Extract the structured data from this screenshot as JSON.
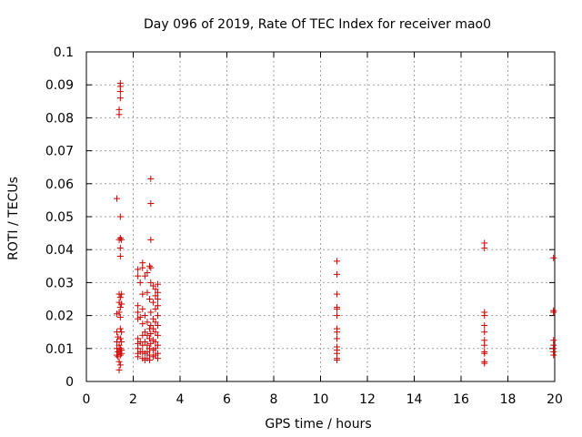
{
  "chart_data": {
    "type": "scatter",
    "title": "Day 096 of 2019, Rate Of TEC Index for receiver mao0",
    "xlabel": "GPS time / hours",
    "ylabel": "ROTI / TECUs",
    "xlim": [
      0,
      20
    ],
    "ylim": [
      0,
      0.1
    ],
    "x_ticks": [
      "0",
      "2",
      "4",
      "6",
      "8",
      "10",
      "12",
      "14",
      "16",
      "18",
      "20"
    ],
    "y_ticks": [
      "0",
      "0.01",
      "0.02",
      "0.03",
      "0.04",
      "0.05",
      "0.06",
      "0.07",
      "0.08",
      "0.09",
      "0.1"
    ],
    "grid": true,
    "marker": "+",
    "marker_color": "#cc0000",
    "series": [
      {
        "name": "mao0",
        "points": [
          [
            1.3,
            0.0555
          ],
          [
            1.3,
            0.015
          ],
          [
            1.3,
            0.012
          ],
          [
            1.3,
            0.01
          ],
          [
            1.3,
            0.008
          ],
          [
            1.3,
            0.0205
          ],
          [
            1.35,
            0.0135
          ],
          [
            1.35,
            0.009
          ],
          [
            1.35,
            0.0075
          ],
          [
            1.4,
            0.0825
          ],
          [
            1.4,
            0.081
          ],
          [
            1.4,
            0.043
          ],
          [
            1.4,
            0.0265
          ],
          [
            1.4,
            0.024
          ],
          [
            1.4,
            0.021
          ],
          [
            1.4,
            0.011
          ],
          [
            1.4,
            0.009
          ],
          [
            1.4,
            0.006
          ],
          [
            1.4,
            0.0035
          ],
          [
            1.45,
            0.0905
          ],
          [
            1.45,
            0.0895
          ],
          [
            1.45,
            0.088
          ],
          [
            1.45,
            0.086
          ],
          [
            1.45,
            0.05
          ],
          [
            1.45,
            0.0435
          ],
          [
            1.45,
            0.0405
          ],
          [
            1.45,
            0.038
          ],
          [
            1.45,
            0.0255
          ],
          [
            1.45,
            0.0225
          ],
          [
            1.45,
            0.0195
          ],
          [
            1.45,
            0.016
          ],
          [
            1.45,
            0.013
          ],
          [
            1.45,
            0.01
          ],
          [
            1.45,
            0.008
          ],
          [
            1.45,
            0.005
          ],
          [
            1.5,
            0.043
          ],
          [
            1.5,
            0.0265
          ],
          [
            1.5,
            0.0235
          ],
          [
            1.5,
            0.015
          ],
          [
            1.5,
            0.012
          ],
          [
            1.5,
            0.0095
          ],
          [
            1.5,
            0.0085
          ],
          [
            2.2,
            0.034
          ],
          [
            2.2,
            0.032
          ],
          [
            2.2,
            0.023
          ],
          [
            2.2,
            0.021
          ],
          [
            2.2,
            0.019
          ],
          [
            2.2,
            0.013
          ],
          [
            2.2,
            0.0115
          ],
          [
            2.2,
            0.01
          ],
          [
            2.2,
            0.0085
          ],
          [
            2.2,
            0.0075
          ],
          [
            2.3,
            0.03
          ],
          [
            2.3,
            0.0195
          ],
          [
            2.3,
            0.012
          ],
          [
            2.3,
            0.009
          ],
          [
            2.4,
            0.036
          ],
          [
            2.4,
            0.0345
          ],
          [
            2.4,
            0.0265
          ],
          [
            2.4,
            0.022
          ],
          [
            2.4,
            0.0175
          ],
          [
            2.4,
            0.014
          ],
          [
            2.4,
            0.011
          ],
          [
            2.4,
            0.009
          ],
          [
            2.4,
            0.007
          ],
          [
            2.5,
            0.032
          ],
          [
            2.5,
            0.02
          ],
          [
            2.5,
            0.015
          ],
          [
            2.5,
            0.012
          ],
          [
            2.5,
            0.0085
          ],
          [
            2.5,
            0.0065
          ],
          [
            2.6,
            0.033
          ],
          [
            2.6,
            0.027
          ],
          [
            2.6,
            0.018
          ],
          [
            2.6,
            0.014
          ],
          [
            2.6,
            0.011
          ],
          [
            2.6,
            0.009
          ],
          [
            2.6,
            0.007
          ],
          [
            2.7,
            0.035
          ],
          [
            2.7,
            0.025
          ],
          [
            2.7,
            0.016
          ],
          [
            2.7,
            0.013
          ],
          [
            2.7,
            0.01
          ],
          [
            2.7,
            0.008
          ],
          [
            2.7,
            0.0065
          ],
          [
            2.75,
            0.0615
          ],
          [
            2.75,
            0.054
          ],
          [
            2.75,
            0.043
          ],
          [
            2.75,
            0.0345
          ],
          [
            2.75,
            0.03
          ],
          [
            2.75,
            0.021
          ],
          [
            2.75,
            0.017
          ],
          [
            2.75,
            0.0145
          ],
          [
            2.75,
            0.0115
          ],
          [
            2.85,
            0.029
          ],
          [
            2.85,
            0.024
          ],
          [
            2.85,
            0.019
          ],
          [
            2.85,
            0.016
          ],
          [
            2.85,
            0.0125
          ],
          [
            2.85,
            0.0095
          ],
          [
            2.85,
            0.0075
          ],
          [
            2.95,
            0.028
          ],
          [
            2.95,
            0.026
          ],
          [
            2.95,
            0.022
          ],
          [
            2.95,
            0.018
          ],
          [
            2.95,
            0.015
          ],
          [
            2.95,
            0.012
          ],
          [
            2.95,
            0.01
          ],
          [
            2.95,
            0.008
          ],
          [
            3.05,
            0.0295
          ],
          [
            3.05,
            0.027
          ],
          [
            3.05,
            0.025
          ],
          [
            3.05,
            0.023
          ],
          [
            3.05,
            0.02
          ],
          [
            3.05,
            0.017
          ],
          [
            3.05,
            0.014
          ],
          [
            3.05,
            0.011
          ],
          [
            3.05,
            0.0085
          ],
          [
            3.05,
            0.007
          ],
          [
            10.7,
            0.0365
          ],
          [
            10.7,
            0.0325
          ],
          [
            10.7,
            0.0265
          ],
          [
            10.7,
            0.0225
          ],
          [
            10.7,
            0.022
          ],
          [
            10.7,
            0.02
          ],
          [
            10.7,
            0.016
          ],
          [
            10.7,
            0.015
          ],
          [
            10.7,
            0.013
          ],
          [
            10.7,
            0.0105
          ],
          [
            10.7,
            0.0095
          ],
          [
            10.7,
            0.0085
          ],
          [
            10.7,
            0.007
          ],
          [
            10.7,
            0.0065
          ],
          [
            17.0,
            0.042
          ],
          [
            17.0,
            0.0405
          ],
          [
            17.0,
            0.021
          ],
          [
            17.0,
            0.02
          ],
          [
            17.0,
            0.017
          ],
          [
            17.0,
            0.015
          ],
          [
            17.0,
            0.0125
          ],
          [
            17.0,
            0.011
          ],
          [
            17.0,
            0.009
          ],
          [
            17.0,
            0.0085
          ],
          [
            17.0,
            0.006
          ],
          [
            17.0,
            0.0055
          ],
          [
            19.95,
            0.0375
          ],
          [
            19.95,
            0.0215
          ],
          [
            19.95,
            0.021
          ],
          [
            19.95,
            0.0125
          ],
          [
            19.95,
            0.011
          ],
          [
            19.95,
            0.01
          ],
          [
            19.95,
            0.009
          ],
          [
            19.95,
            0.008
          ]
        ]
      }
    ]
  }
}
